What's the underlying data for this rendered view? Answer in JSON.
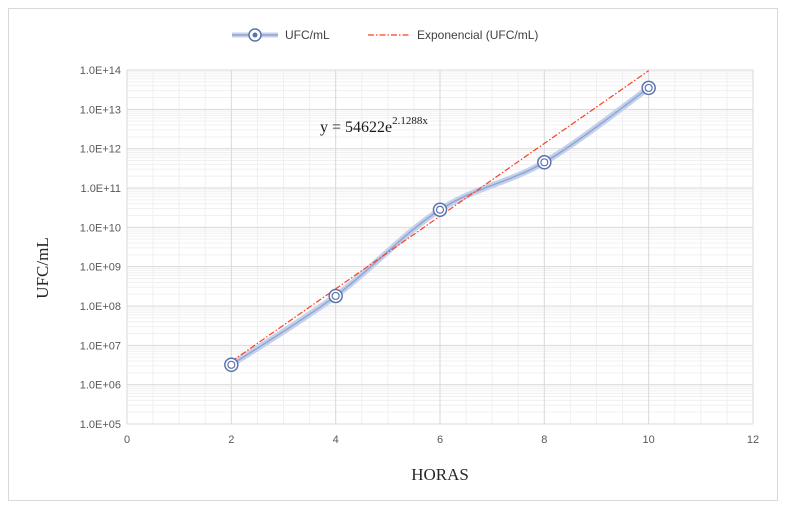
{
  "chart_data": {
    "type": "line",
    "xlabel": "HORAS",
    "ylabel": "UFC/mL",
    "xlim": [
      0,
      12
    ],
    "x_ticks": [
      "0",
      "2",
      "4",
      "6",
      "8",
      "10",
      "12"
    ],
    "y_scale": "log",
    "ylim": [
      100000,
      100000000000000
    ],
    "y_ticks": [
      "1.0E+05",
      "1.0E+06",
      "1.0E+07",
      "1.0E+08",
      "1.0E+09",
      "1.0E+10",
      "1.0E+11",
      "1.0E+12",
      "1.0E+13",
      "1.0E+14"
    ],
    "grid": true,
    "legend_position": "top",
    "series": [
      {
        "name": "UFC/mL",
        "x": [
          2,
          4,
          6,
          8,
          10
        ],
        "y": [
          3200000,
          180000000,
          28000000000,
          450000000000,
          35000000000000
        ],
        "color": "#8fa6d6",
        "marker_color": "#5b73ad"
      },
      {
        "name": "Exponencial (UFC/mL)",
        "type": "trendline",
        "color": "#ff3d1f",
        "a": 54622,
        "b": 2.1288
      }
    ],
    "annotation": {
      "prefix": "y = 54622e",
      "exponent": "2.1288x"
    }
  }
}
